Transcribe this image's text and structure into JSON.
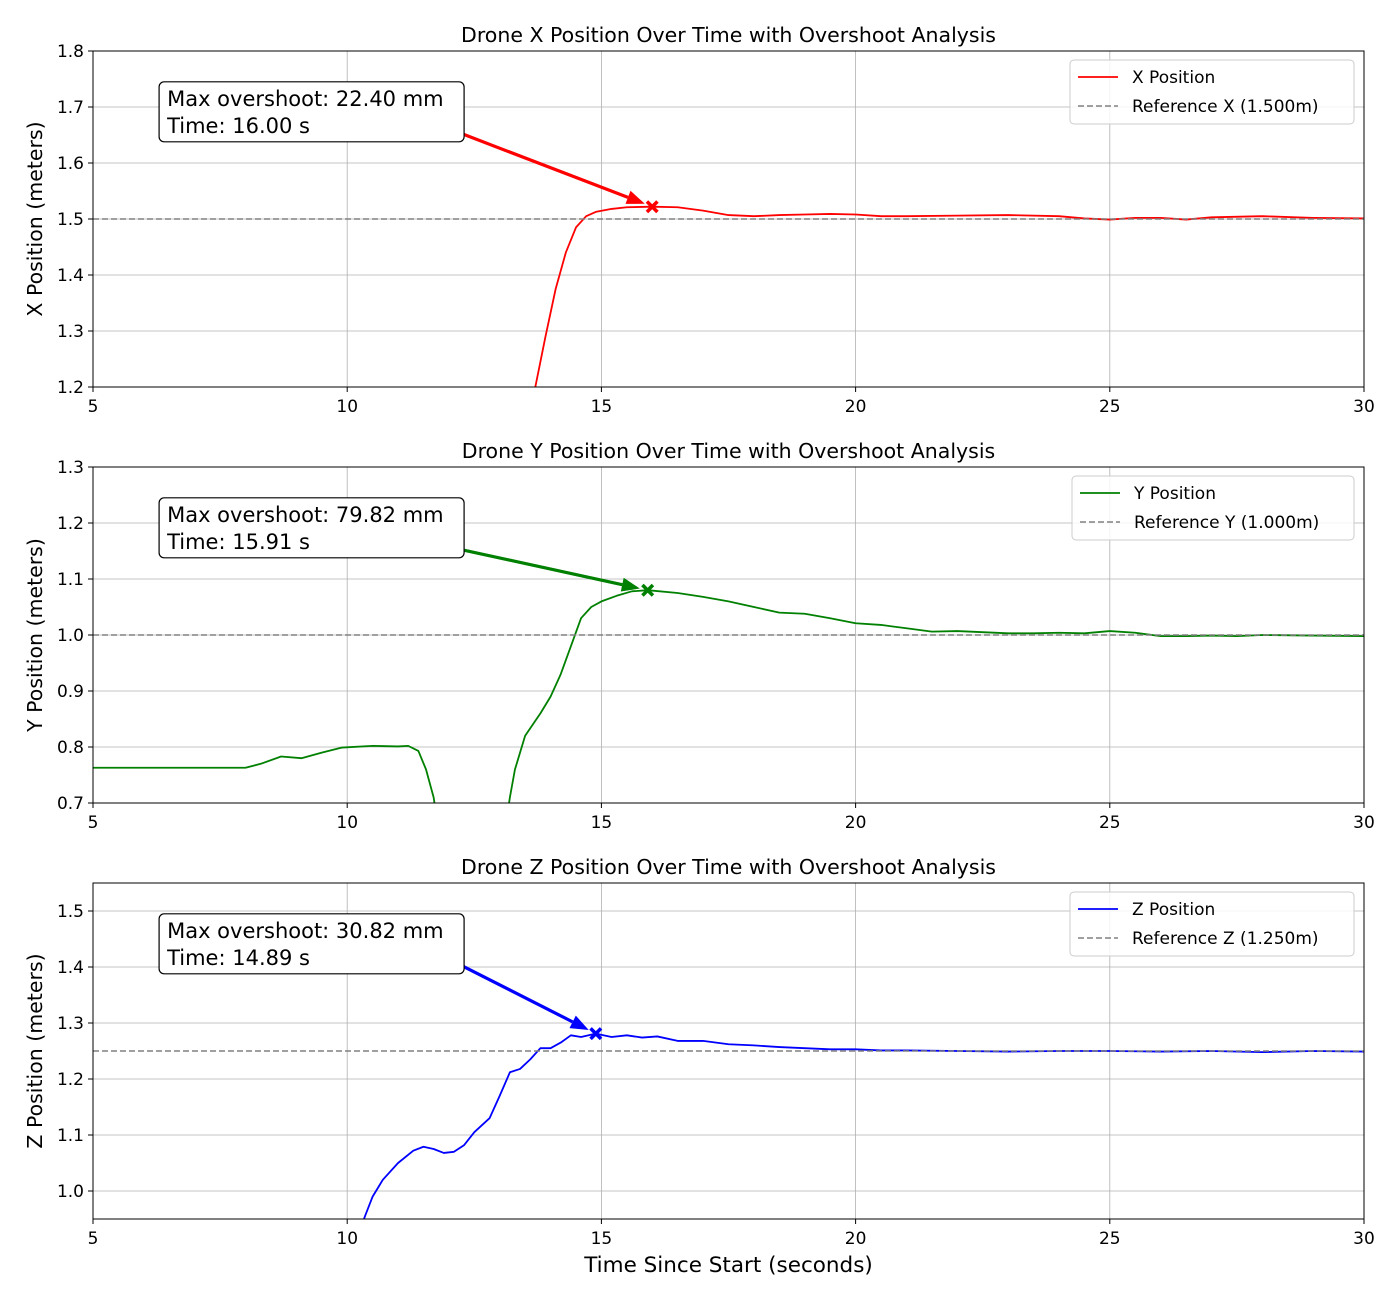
{
  "chart_data": [
    {
      "type": "line",
      "title": "Drone X Position Over Time with Overshoot Analysis",
      "xlabel": "",
      "ylabel": "X Position (meters)",
      "xlim": [
        5,
        30
      ],
      "ylim": [
        1.2,
        1.8
      ],
      "xticks": [
        "5",
        "10",
        "15",
        "20",
        "25",
        "30"
      ],
      "yticks": [
        "1.2",
        "1.3",
        "1.4",
        "1.5",
        "1.6",
        "1.7",
        "1.8"
      ],
      "grid": true,
      "legend_position": "top-right",
      "series": [
        {
          "name": "X Position",
          "color": "#ff0000",
          "style": "solid",
          "points": [
            [
              13.5,
              1.1
            ],
            [
              13.7,
              1.2
            ],
            [
              13.9,
              1.29
            ],
            [
              14.1,
              1.375
            ],
            [
              14.3,
              1.44
            ],
            [
              14.5,
              1.485
            ],
            [
              14.7,
              1.505
            ],
            [
              14.9,
              1.513
            ],
            [
              15.2,
              1.518
            ],
            [
              15.5,
              1.521
            ],
            [
              16.0,
              1.522
            ],
            [
              16.5,
              1.521
            ],
            [
              17.0,
              1.515
            ],
            [
              17.5,
              1.507
            ],
            [
              18.0,
              1.505
            ],
            [
              18.5,
              1.507
            ],
            [
              19.0,
              1.508
            ],
            [
              19.5,
              1.509
            ],
            [
              20.0,
              1.508
            ],
            [
              20.5,
              1.505
            ],
            [
              21.0,
              1.505
            ],
            [
              22.0,
              1.506
            ],
            [
              23.0,
              1.507
            ],
            [
              24.0,
              1.505
            ],
            [
              24.5,
              1.501
            ],
            [
              25.0,
              1.499
            ],
            [
              25.5,
              1.502
            ],
            [
              26.0,
              1.502
            ],
            [
              26.5,
              1.499
            ],
            [
              27.0,
              1.503
            ],
            [
              28.0,
              1.505
            ],
            [
              29.0,
              1.502
            ],
            [
              30.0,
              1.501
            ]
          ]
        },
        {
          "name": "Reference X (1.500m)",
          "color": "#808080",
          "style": "dashed",
          "points": [
            [
              5,
              1.5
            ],
            [
              30,
              1.5
            ]
          ]
        }
      ],
      "peak_marker": {
        "x": 16.0,
        "y": 1.522,
        "color": "#ff0000"
      },
      "annotation": {
        "lines": [
          "Max overshoot: 22.40 mm",
          "Time: 16.00 s"
        ],
        "box_x": 6.3,
        "box_y": 1.745,
        "color": "#ff0000"
      }
    },
    {
      "type": "line",
      "title": "Drone Y Position Over Time with Overshoot Analysis",
      "xlabel": "",
      "ylabel": "Y Position (meters)",
      "xlim": [
        5,
        30
      ],
      "ylim": [
        0.7,
        1.3
      ],
      "xticks": [
        "5",
        "10",
        "15",
        "20",
        "25",
        "30"
      ],
      "yticks": [
        "0.7",
        "0.8",
        "0.9",
        "1.0",
        "1.1",
        "1.2",
        "1.3"
      ],
      "grid": true,
      "legend_position": "top-right",
      "series": [
        {
          "name": "Y Position",
          "color": "#008000",
          "style": "solid",
          "points": [
            [
              5,
              0.763
            ],
            [
              8.0,
              0.763
            ],
            [
              8.3,
              0.77
            ],
            [
              8.7,
              0.783
            ],
            [
              9.1,
              0.78
            ],
            [
              9.5,
              0.79
            ],
            [
              9.9,
              0.799
            ],
            [
              10.5,
              0.802
            ],
            [
              11.0,
              0.801
            ],
            [
              11.2,
              0.802
            ],
            [
              11.4,
              0.793
            ],
            [
              11.55,
              0.76
            ],
            [
              11.7,
              0.71
            ],
            [
              11.8,
              0.65
            ],
            [
              13.1,
              0.65
            ],
            [
              13.2,
              0.71
            ],
            [
              13.3,
              0.76
            ],
            [
              13.5,
              0.82
            ],
            [
              13.8,
              0.86
            ],
            [
              14.0,
              0.89
            ],
            [
              14.2,
              0.93
            ],
            [
              14.4,
              0.98
            ],
            [
              14.6,
              1.03
            ],
            [
              14.8,
              1.05
            ],
            [
              15.0,
              1.06
            ],
            [
              15.3,
              1.07
            ],
            [
              15.6,
              1.078
            ],
            [
              15.91,
              1.08
            ],
            [
              16.5,
              1.075
            ],
            [
              17.0,
              1.068
            ],
            [
              17.5,
              1.06
            ],
            [
              18.0,
              1.05
            ],
            [
              18.5,
              1.04
            ],
            [
              19.0,
              1.038
            ],
            [
              19.5,
              1.03
            ],
            [
              20.0,
              1.021
            ],
            [
              20.5,
              1.018
            ],
            [
              21.0,
              1.012
            ],
            [
              21.5,
              1.006
            ],
            [
              22.0,
              1.007
            ],
            [
              22.5,
              1.005
            ],
            [
              23.0,
              1.003
            ],
            [
              23.5,
              1.003
            ],
            [
              24.0,
              1.004
            ],
            [
              24.5,
              1.003
            ],
            [
              25.0,
              1.007
            ],
            [
              25.5,
              1.004
            ],
            [
              26.0,
              0.998
            ],
            [
              26.5,
              0.998
            ],
            [
              27.0,
              0.999
            ],
            [
              27.5,
              0.998
            ],
            [
              28.0,
              1.0
            ],
            [
              29.0,
              0.999
            ],
            [
              30.0,
              0.998
            ]
          ]
        },
        {
          "name": "Reference Y (1.000m)",
          "color": "#808080",
          "style": "dashed",
          "points": [
            [
              5,
              1.0
            ],
            [
              30,
              1.0
            ]
          ]
        }
      ],
      "peak_marker": {
        "x": 15.91,
        "y": 1.08,
        "color": "#008000"
      },
      "annotation": {
        "lines": [
          "Max overshoot: 79.82 mm",
          "Time: 15.91 s"
        ],
        "box_x": 6.3,
        "box_y": 1.245,
        "color": "#008000"
      }
    },
    {
      "type": "line",
      "title": "Drone Z Position Over Time with Overshoot Analysis",
      "xlabel": "Time Since Start (seconds)",
      "ylabel": "Z Position (meters)",
      "xlim": [
        5,
        30
      ],
      "ylim": [
        0.95,
        1.55
      ],
      "xticks": [
        "5",
        "10",
        "15",
        "20",
        "25",
        "30"
      ],
      "yticks": [
        "1.0",
        "1.1",
        "1.2",
        "1.3",
        "1.4",
        "1.5"
      ],
      "grid": true,
      "legend_position": "top-right",
      "series": [
        {
          "name": "Z Position",
          "color": "#0000ff",
          "style": "solid",
          "points": [
            [
              10.25,
              0.93
            ],
            [
              10.35,
              0.955
            ],
            [
              10.5,
              0.99
            ],
            [
              10.7,
              1.02
            ],
            [
              11.0,
              1.05
            ],
            [
              11.3,
              1.072
            ],
            [
              11.5,
              1.079
            ],
            [
              11.7,
              1.075
            ],
            [
              11.9,
              1.068
            ],
            [
              12.1,
              1.07
            ],
            [
              12.3,
              1.082
            ],
            [
              12.5,
              1.105
            ],
            [
              12.8,
              1.13
            ],
            [
              13.0,
              1.17
            ],
            [
              13.2,
              1.212
            ],
            [
              13.4,
              1.218
            ],
            [
              13.6,
              1.235
            ],
            [
              13.8,
              1.255
            ],
            [
              14.0,
              1.255
            ],
            [
              14.2,
              1.265
            ],
            [
              14.4,
              1.278
            ],
            [
              14.6,
              1.275
            ],
            [
              14.89,
              1.281
            ],
            [
              15.2,
              1.275
            ],
            [
              15.5,
              1.278
            ],
            [
              15.8,
              1.274
            ],
            [
              16.1,
              1.276
            ],
            [
              16.5,
              1.268
            ],
            [
              17.0,
              1.268
            ],
            [
              17.5,
              1.262
            ],
            [
              18.0,
              1.26
            ],
            [
              18.5,
              1.257
            ],
            [
              19.0,
              1.255
            ],
            [
              19.5,
              1.253
            ],
            [
              20.0,
              1.253
            ],
            [
              20.5,
              1.251
            ],
            [
              21.0,
              1.251
            ],
            [
              22.0,
              1.25
            ],
            [
              23.0,
              1.249
            ],
            [
              24.0,
              1.25
            ],
            [
              25.0,
              1.25
            ],
            [
              26.0,
              1.249
            ],
            [
              27.0,
              1.25
            ],
            [
              28.0,
              1.248
            ],
            [
              29.0,
              1.25
            ],
            [
              30.0,
              1.249
            ]
          ]
        },
        {
          "name": "Reference Z (1.250m)",
          "color": "#808080",
          "style": "dashed",
          "points": [
            [
              5,
              1.25
            ],
            [
              30,
              1.25
            ]
          ]
        }
      ],
      "peak_marker": {
        "x": 14.89,
        "y": 1.281,
        "color": "#0000ff"
      },
      "annotation": {
        "lines": [
          "Max overshoot: 30.82 mm",
          "Time: 14.89 s"
        ],
        "box_x": 6.3,
        "box_y": 1.495,
        "color": "#0000ff"
      }
    }
  ]
}
